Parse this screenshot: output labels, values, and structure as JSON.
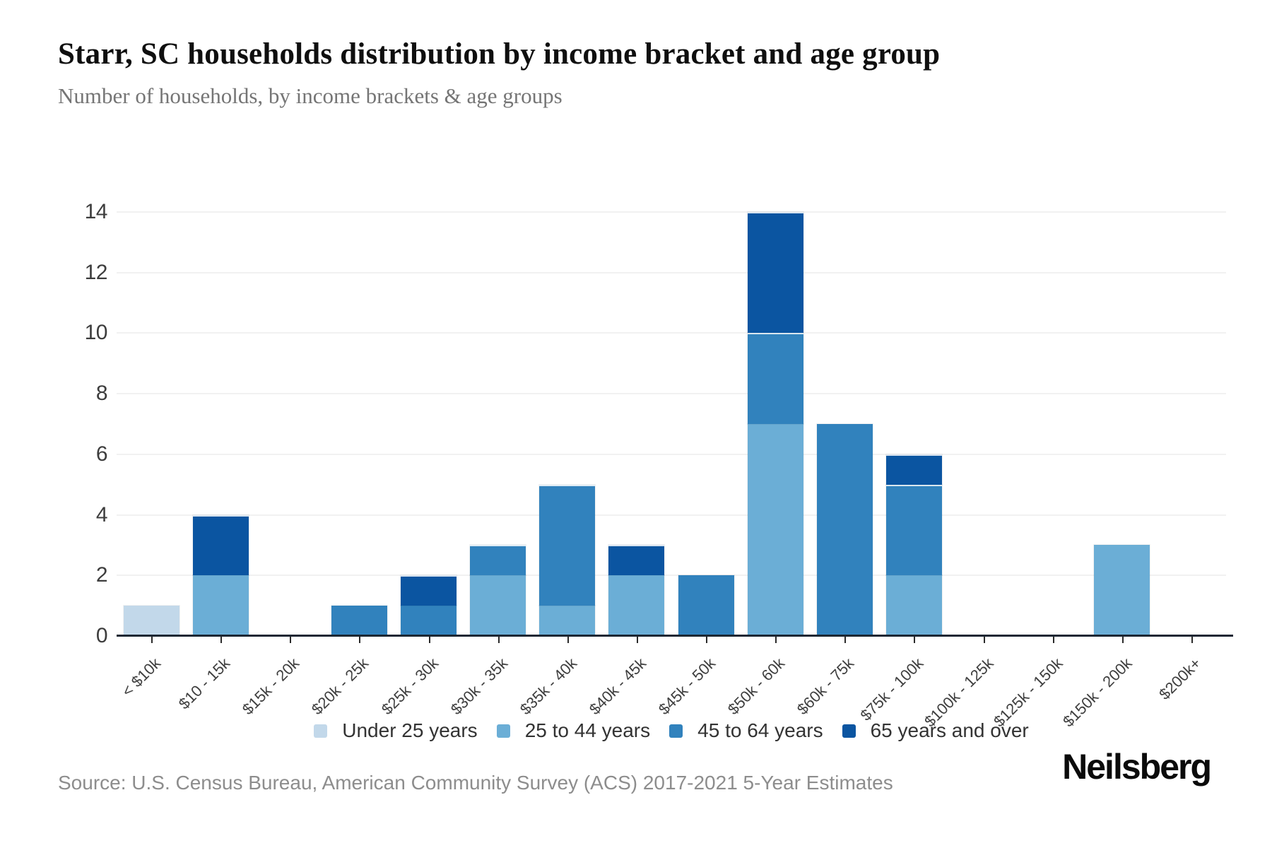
{
  "header": {
    "title": "Starr, SC households distribution by income bracket and age group",
    "subtitle": "Number of households, by income brackets & age groups"
  },
  "chart_data": {
    "type": "bar",
    "stacked": true,
    "title": "Starr, SC households distribution by income bracket and age group",
    "subtitle": "Number of households, by income brackets & age groups",
    "categories": [
      "< $10k",
      "$10 - 15k",
      "$15k - 20k",
      "$20k - 25k",
      "$25k - 30k",
      "$30k - 35k",
      "$35k - 40k",
      "$40k - 45k",
      "$45k - 50k",
      "$50k - 60k",
      "$60k - 75k",
      "$75k - 100k",
      "$100k - 125k",
      "$125k - 150k",
      "$150k - 200k",
      "$200k+"
    ],
    "series": [
      {
        "name": "Under 25 years",
        "color": "#c2d8ea",
        "values": [
          1,
          0,
          0,
          0,
          0,
          0,
          0,
          0,
          0,
          0,
          0,
          0,
          0,
          0,
          0,
          0
        ]
      },
      {
        "name": "25 to 44 years",
        "color": "#6baed6",
        "values": [
          0,
          2,
          0,
          0,
          0,
          2,
          1,
          2,
          0,
          7,
          0,
          2,
          0,
          0,
          3,
          0
        ]
      },
      {
        "name": "45 to 64 years",
        "color": "#3182bd",
        "values": [
          0,
          0,
          0,
          1,
          1,
          1,
          4,
          0,
          2,
          3,
          7,
          3,
          0,
          0,
          0,
          0
        ]
      },
      {
        "name": "65 years and over",
        "color": "#0b55a1",
        "values": [
          0,
          2,
          0,
          0,
          1,
          0,
          0,
          1,
          0,
          4,
          0,
          1,
          0,
          0,
          0,
          0
        ]
      }
    ],
    "totals": [
      1,
      4,
      0,
      1,
      2,
      3,
      5,
      3,
      2,
      14,
      7,
      6,
      0,
      0,
      3,
      0
    ],
    "ylim": [
      0,
      14
    ],
    "yticks": [
      0,
      2,
      4,
      6,
      8,
      10,
      12,
      14
    ],
    "grid": true,
    "legend_position": "bottom",
    "axis_color": "#1c2733",
    "gridline_color": "#f1f1f1"
  },
  "footer": {
    "source": "Source: U.S. Census Bureau, American Community Survey (ACS) 2017-2021 5-Year Estimates",
    "logo": "Neilsberg"
  }
}
